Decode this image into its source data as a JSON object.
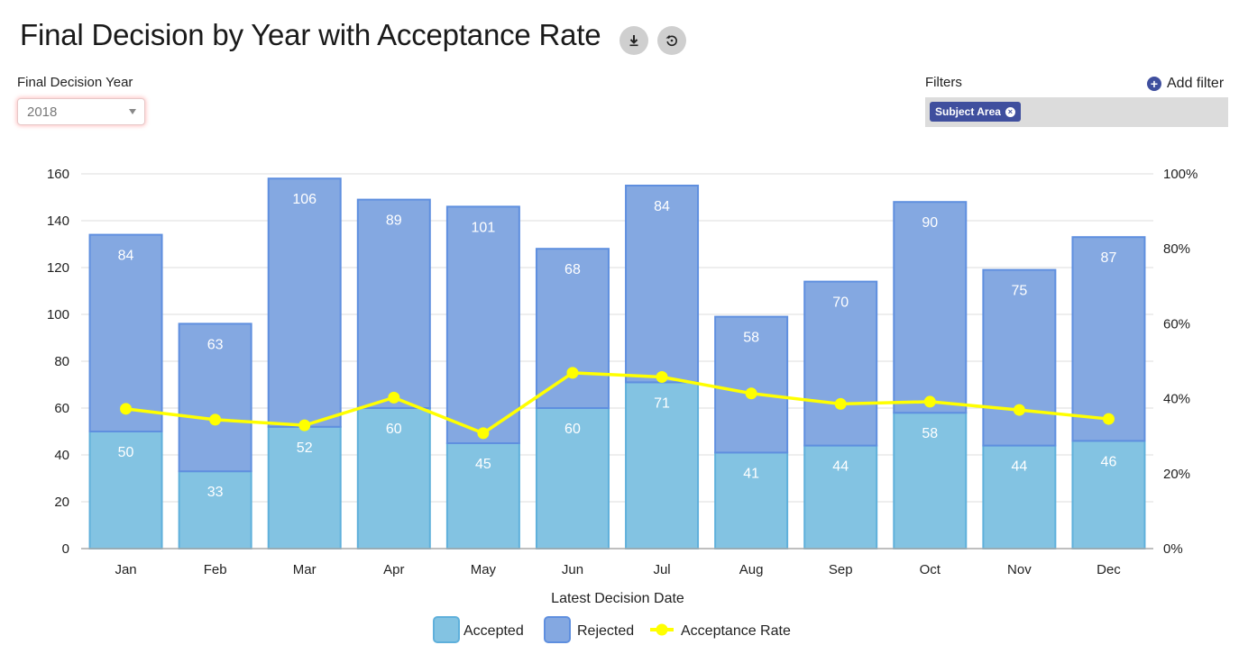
{
  "header": {
    "title": "Final Decision by Year with Acceptance Rate",
    "download_icon": "download-icon",
    "reset_icon": "reset-icon"
  },
  "year_filter": {
    "label": "Final Decision Year",
    "selected": "2018"
  },
  "filters": {
    "label": "Filters",
    "add_label": "Add filter",
    "chips": [
      {
        "label": "Subject Area"
      }
    ]
  },
  "colors": {
    "accepted": "#83c3e2",
    "accepted_border": "#5fb0db",
    "rejected": "#84a8e1",
    "rejected_border": "#5f8fdf",
    "rate": "#ffff00",
    "chip": "#3f4f9e"
  },
  "chart_data": {
    "type": "bar",
    "stacked": true,
    "title": "",
    "xlabel": "Latest Decision Date",
    "ylabel": "",
    "categories": [
      "Jan",
      "Feb",
      "Mar",
      "Apr",
      "May",
      "Jun",
      "Jul",
      "Aug",
      "Sep",
      "Oct",
      "Nov",
      "Dec"
    ],
    "series": [
      {
        "name": "Accepted",
        "type": "bar",
        "values": [
          50,
          33,
          52,
          60,
          45,
          60,
          71,
          41,
          44,
          58,
          44,
          46
        ]
      },
      {
        "name": "Rejected",
        "type": "bar",
        "values": [
          84,
          63,
          106,
          89,
          101,
          68,
          84,
          58,
          70,
          90,
          75,
          87
        ]
      },
      {
        "name": "Acceptance Rate",
        "type": "line",
        "axis": "right",
        "values": [
          37.3,
          34.4,
          32.9,
          40.3,
          30.8,
          46.9,
          45.8,
          41.4,
          38.6,
          39.2,
          37.0,
          34.6
        ]
      }
    ],
    "ylim": [
      0,
      160
    ],
    "yticks": [
      "0",
      "20",
      "40",
      "60",
      "80",
      "100",
      "120",
      "140",
      "160"
    ],
    "y2lim": [
      0,
      100
    ],
    "y2ticks": [
      "0%",
      "20%",
      "40%",
      "60%",
      "80%",
      "100%"
    ],
    "grid": true,
    "legend": "bottom"
  }
}
